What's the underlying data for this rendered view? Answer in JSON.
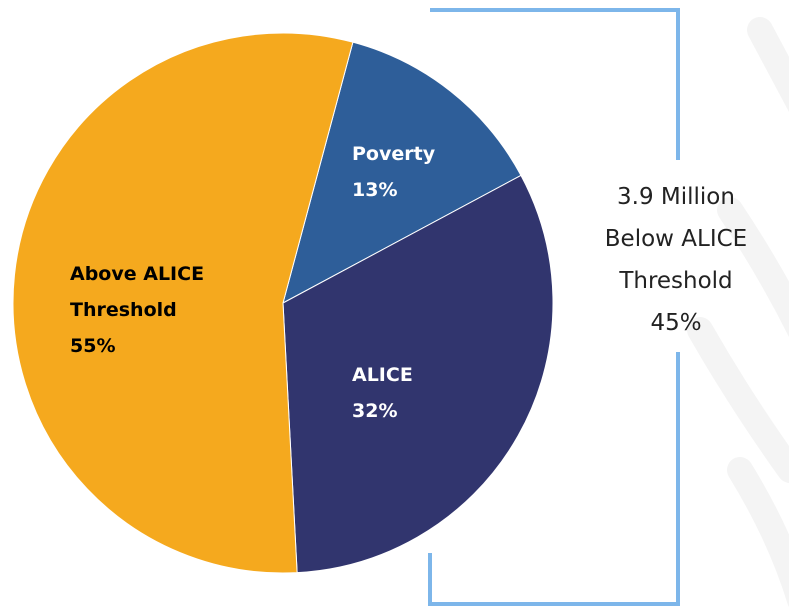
{
  "chart_data": {
    "type": "pie",
    "slices": [
      {
        "name": "Poverty",
        "label_lines": [
          "Poverty"
        ],
        "value": 13,
        "value_label": "13%",
        "color": "#2E5E99"
      },
      {
        "name": "ALICE",
        "label_lines": [
          "ALICE"
        ],
        "value": 32,
        "value_label": "32%",
        "color": "#31356E"
      },
      {
        "name": "Above ALICE Threshold",
        "label_lines": [
          "Above ALICE",
          "Threshold"
        ],
        "value": 55,
        "value_label": "55%",
        "color": "#F5A91E"
      }
    ],
    "bracket": {
      "lines": [
        "3.9 Million",
        "Below ALICE",
        "Threshold",
        "45%"
      ],
      "color": "#7DB6EA"
    },
    "background_watermark_color": "#F4F4F4"
  }
}
